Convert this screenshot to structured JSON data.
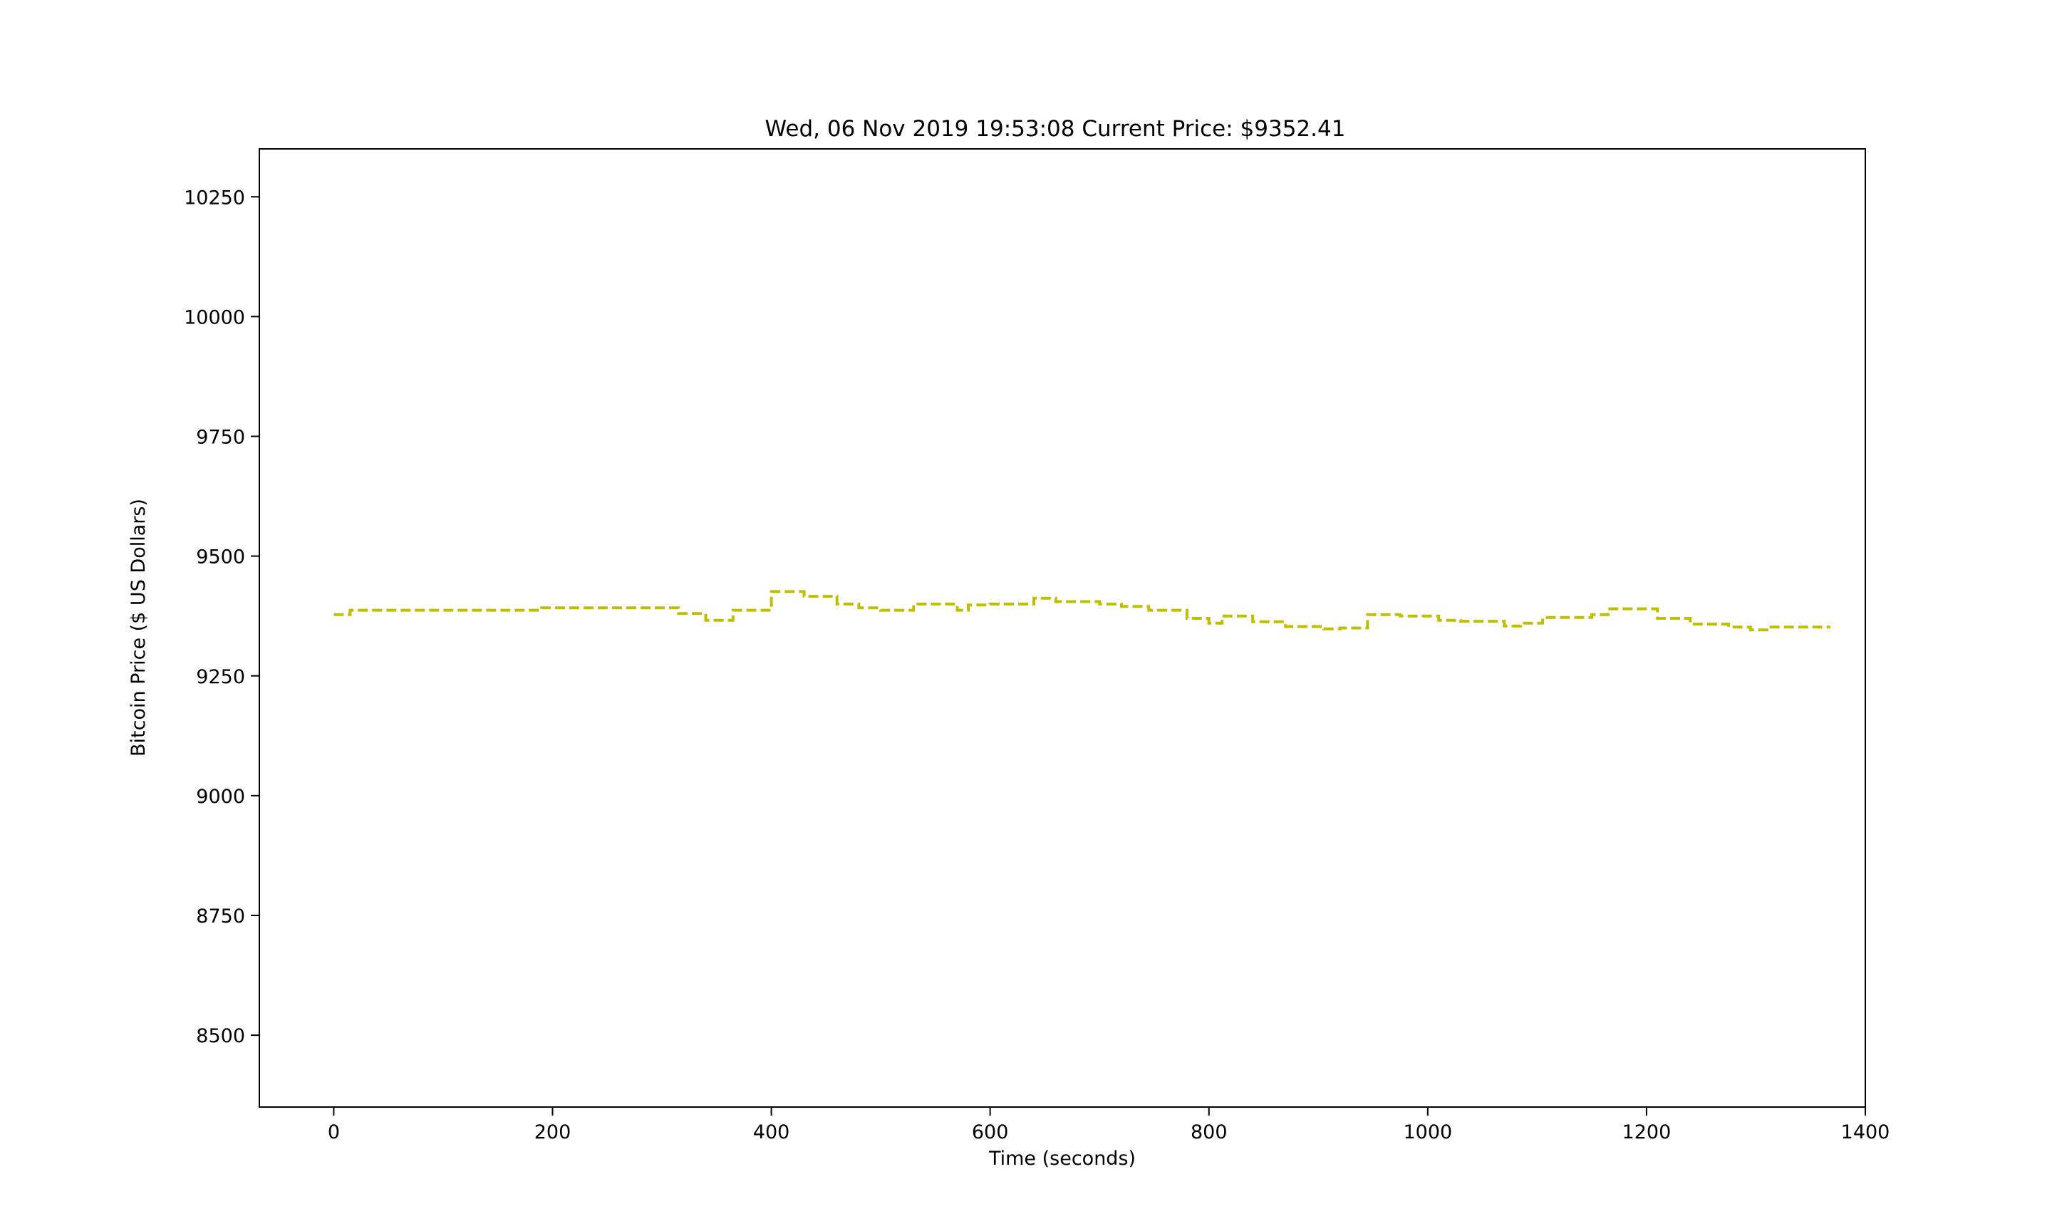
{
  "chart_data": {
    "type": "line",
    "title": "Wed, 06 Nov 2019 19:53:08 Current Price: $9352.41",
    "xlabel": "Time (seconds)",
    "ylabel": "Bitcoin Price ($ US Dollars)",
    "xlim": [
      -68,
      1400
    ],
    "ylim": [
      8350,
      10350
    ],
    "xticks": [
      0,
      200,
      400,
      600,
      800,
      1000,
      1200,
      1400
    ],
    "yticks": [
      8500,
      8750,
      9000,
      9250,
      9500,
      9750,
      10000,
      10250
    ],
    "xtick_labels": [
      "0",
      "200",
      "400",
      "600",
      "800",
      "1000",
      "1200",
      "1400"
    ],
    "ytick_labels": [
      "8500",
      "8750",
      "9000",
      "9250",
      "9500",
      "9750",
      "10000",
      "10250"
    ],
    "grid": false,
    "series": [
      {
        "color": "#bfbf00",
        "line_style": "dashed",
        "drawstyle": "steps-post",
        "x": [
          0,
          15,
          190,
          315,
          340,
          365,
          400,
          430,
          460,
          480,
          500,
          530,
          570,
          580,
          600,
          640,
          660,
          700,
          720,
          745,
          780,
          800,
          812,
          840,
          870,
          905,
          920,
          945,
          975,
          1010,
          1030,
          1070,
          1085,
          1105,
          1150,
          1165,
          1210,
          1240,
          1275,
          1295,
          1310,
          1368
        ],
        "y": [
          9378,
          9387,
          9392,
          9380,
          9366,
          9387,
          9426,
          9416,
          9400,
          9392,
          9387,
          9400,
          9387,
          9398,
          9400,
          9412,
          9405,
          9400,
          9395,
          9387,
          9370,
          9360,
          9375,
          9363,
          9353,
          9348,
          9350,
          9378,
          9375,
          9366,
          9364,
          9354,
          9360,
          9372,
          9378,
          9390,
          9370,
          9358,
          9352,
          9346,
          9352,
          9352
        ]
      }
    ]
  }
}
